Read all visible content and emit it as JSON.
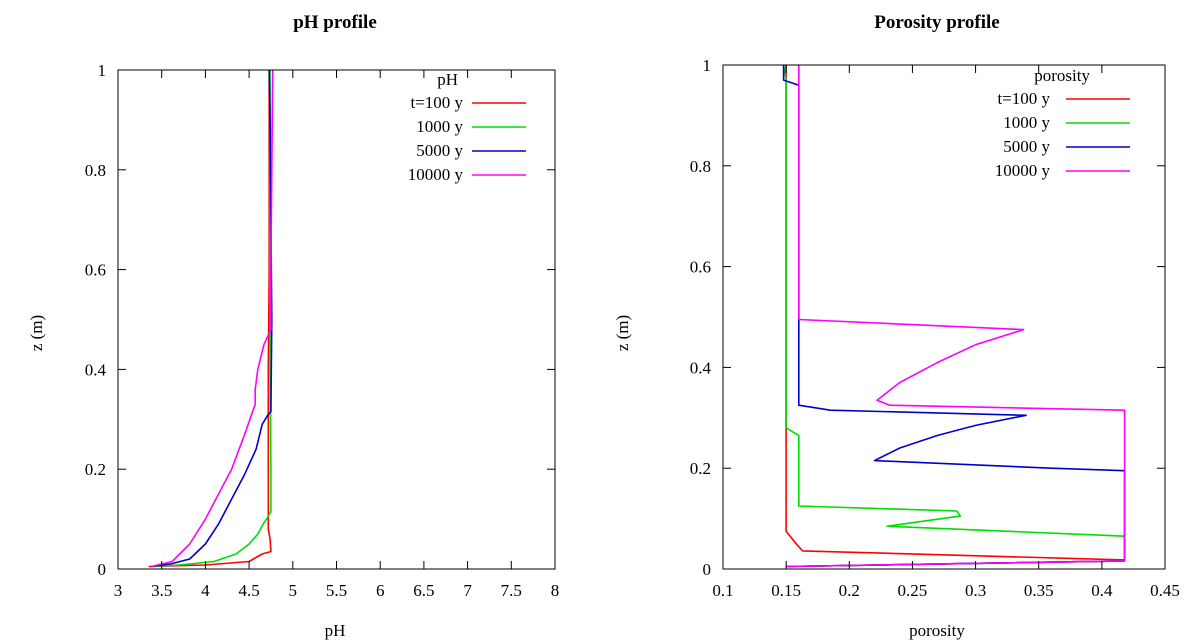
{
  "charts": {
    "ph": {
      "title": "pH profile",
      "xlabel": "pH",
      "ylabel": "z (m)",
      "legend_title": "pH"
    },
    "porosity": {
      "title": "Porosity profile",
      "xlabel": "porosity",
      "ylabel": "z (m)",
      "legend_title": "porosity"
    }
  },
  "chart_data": [
    {
      "type": "line",
      "title": "pH profile",
      "xlabel": "pH",
      "ylabel": "z (m)",
      "xlim": [
        3,
        8
      ],
      "ylim": [
        0,
        1
      ],
      "xticks": [
        "3",
        "3.5",
        "4",
        "4.5",
        "5",
        "5.5",
        "6",
        "6.5",
        "7",
        "7.5",
        "8"
      ],
      "yticks": [
        "0",
        "0.2",
        "0.4",
        "0.6",
        "0.8",
        "1"
      ],
      "legend_title": "pH",
      "legend_position": "top-right",
      "series": [
        {
          "name": "t=100 y",
          "color": "#ff0000",
          "points": [
            [
              3.35,
              0.005
            ],
            [
              4.0,
              0.008
            ],
            [
              4.5,
              0.015
            ],
            [
              4.6,
              0.025
            ],
            [
              4.65,
              0.03
            ],
            [
              4.75,
              0.035
            ],
            [
              4.74,
              0.06
            ],
            [
              4.72,
              0.08
            ],
            [
              4.72,
              0.2
            ],
            [
              4.72,
              0.4
            ],
            [
              4.73,
              0.6
            ],
            [
              4.73,
              0.8
            ],
            [
              4.73,
              1.0
            ]
          ]
        },
        {
          "name": "1000 y",
          "color": "#00dd00",
          "points": [
            [
              3.4,
              0.005
            ],
            [
              3.7,
              0.008
            ],
            [
              4.1,
              0.015
            ],
            [
              4.35,
              0.03
            ],
            [
              4.5,
              0.05
            ],
            [
              4.6,
              0.07
            ],
            [
              4.66,
              0.09
            ],
            [
              4.7,
              0.1
            ],
            [
              4.75,
              0.115
            ],
            [
              4.75,
              0.2
            ],
            [
              4.74,
              0.4
            ],
            [
              4.74,
              0.6
            ],
            [
              4.74,
              0.8
            ],
            [
              4.74,
              1.0
            ]
          ]
        },
        {
          "name": "5000 y",
          "color": "#0000cc",
          "points": [
            [
              3.38,
              0.005
            ],
            [
              3.6,
              0.01
            ],
            [
              3.82,
              0.02
            ],
            [
              4.0,
              0.05
            ],
            [
              4.15,
              0.09
            ],
            [
              4.3,
              0.14
            ],
            [
              4.45,
              0.19
            ],
            [
              4.58,
              0.24
            ],
            [
              4.65,
              0.29
            ],
            [
              4.72,
              0.31
            ],
            [
              4.75,
              0.315
            ],
            [
              4.76,
              0.5
            ],
            [
              4.75,
              0.7
            ],
            [
              4.74,
              0.9
            ],
            [
              4.73,
              1.0
            ]
          ]
        },
        {
          "name": "10000 y",
          "color": "#ff00ff",
          "points": [
            [
              3.38,
              0.005
            ],
            [
              3.62,
              0.015
            ],
            [
              3.82,
              0.05
            ],
            [
              4.0,
              0.1
            ],
            [
              4.15,
              0.15
            ],
            [
              4.3,
              0.2
            ],
            [
              4.45,
              0.27
            ],
            [
              4.57,
              0.33
            ],
            [
              4.57,
              0.36
            ],
            [
              4.6,
              0.4
            ],
            [
              4.67,
              0.45
            ],
            [
              4.75,
              0.48
            ],
            [
              4.75,
              0.6
            ],
            [
              4.76,
              0.8
            ],
            [
              4.77,
              1.0
            ]
          ]
        }
      ]
    },
    {
      "type": "line",
      "title": "Porosity profile",
      "xlabel": "porosity",
      "ylabel": "z (m)",
      "xlim": [
        0.1,
        0.45
      ],
      "ylim": [
        0,
        1
      ],
      "xticks": [
        "0.1",
        "0.15",
        "0.2",
        "0.25",
        "0.3",
        "0.35",
        "0.4",
        "0.45"
      ],
      "yticks": [
        "0",
        "0.2",
        "0.4",
        "0.6",
        "0.8",
        "1"
      ],
      "legend_title": "porosity",
      "legend_position": "top-right",
      "series": [
        {
          "name": "t=100 y",
          "color": "#ff0000",
          "points": [
            [
              0.15,
              0.005
            ],
            [
              0.418,
              0.016
            ],
            [
              0.418,
              0.018
            ],
            [
              0.163,
              0.036
            ],
            [
              0.158,
              0.05
            ],
            [
              0.15,
              0.075
            ],
            [
              0.15,
              0.3
            ],
            [
              0.15,
              0.6
            ],
            [
              0.15,
              1.0
            ]
          ]
        },
        {
          "name": "1000 y",
          "color": "#00dd00",
          "points": [
            [
              0.15,
              0.005
            ],
            [
              0.418,
              0.016
            ],
            [
              0.418,
              0.065
            ],
            [
              0.23,
              0.085
            ],
            [
              0.288,
              0.105
            ],
            [
              0.285,
              0.115
            ],
            [
              0.16,
              0.125
            ],
            [
              0.16,
              0.265
            ],
            [
              0.15,
              0.28
            ],
            [
              0.15,
              0.6
            ],
            [
              0.15,
              0.97
            ],
            [
              0.148,
              1.0
            ]
          ]
        },
        {
          "name": "5000 y",
          "color": "#0000cc",
          "points": [
            [
              0.15,
              0.005
            ],
            [
              0.418,
              0.016
            ],
            [
              0.418,
              0.195
            ],
            [
              0.36,
              0.2
            ],
            [
              0.22,
              0.215
            ],
            [
              0.24,
              0.24
            ],
            [
              0.27,
              0.265
            ],
            [
              0.3,
              0.285
            ],
            [
              0.34,
              0.305
            ],
            [
              0.185,
              0.315
            ],
            [
              0.16,
              0.325
            ],
            [
              0.16,
              0.96
            ],
            [
              0.148,
              0.97
            ],
            [
              0.148,
              1.0
            ]
          ]
        },
        {
          "name": "10000 y",
          "color": "#ff00ff",
          "points": [
            [
              0.15,
              0.005
            ],
            [
              0.418,
              0.016
            ],
            [
              0.418,
              0.315
            ],
            [
              0.232,
              0.325
            ],
            [
              0.222,
              0.335
            ],
            [
              0.24,
              0.37
            ],
            [
              0.27,
              0.41
            ],
            [
              0.3,
              0.445
            ],
            [
              0.338,
              0.475
            ],
            [
              0.16,
              0.495
            ],
            [
              0.16,
              0.7
            ],
            [
              0.16,
              1.0
            ]
          ]
        }
      ]
    }
  ]
}
